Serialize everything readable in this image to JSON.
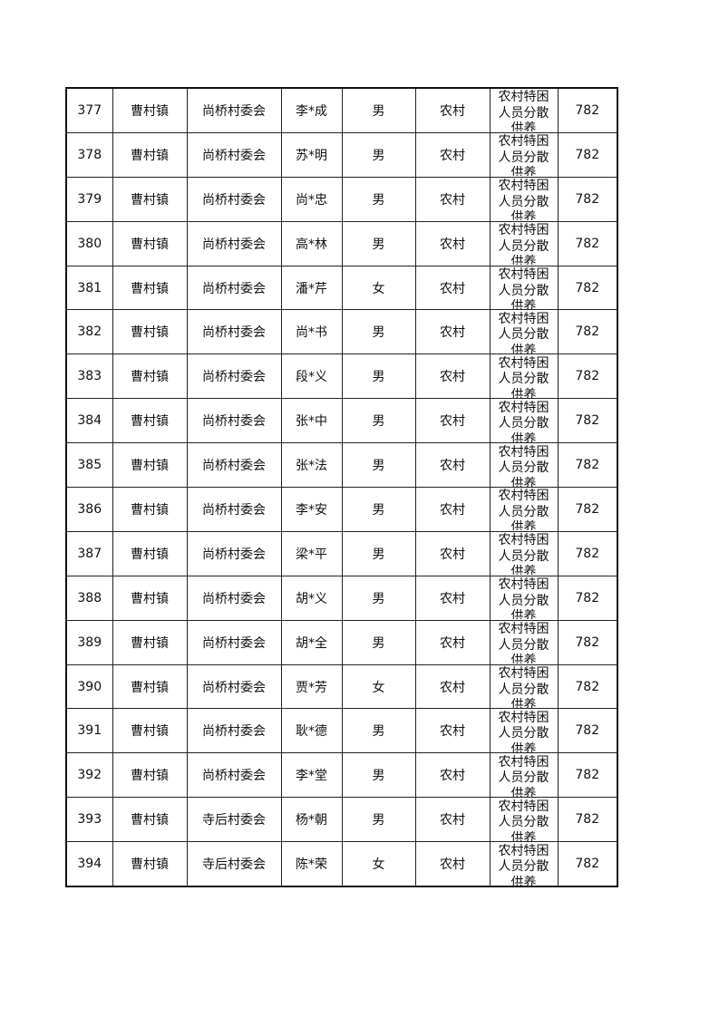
{
  "table": {
    "rows": [
      [
        "377",
        "曹村镇",
        "尚桥村委会",
        "李*成",
        "男",
        "农村",
        "农村特困人员分散供养",
        "782"
      ],
      [
        "378",
        "曹村镇",
        "尚桥村委会",
        "苏*明",
        "男",
        "农村",
        "农村特困人员分散供养",
        "782"
      ],
      [
        "379",
        "曹村镇",
        "尚桥村委会",
        "尚*忠",
        "男",
        "农村",
        "农村特困人员分散供养",
        "782"
      ],
      [
        "380",
        "曹村镇",
        "尚桥村委会",
        "高*林",
        "男",
        "农村",
        "农村特困人员分散供养",
        "782"
      ],
      [
        "381",
        "曹村镇",
        "尚桥村委会",
        "潘*芹",
        "女",
        "农村",
        "农村特困人员分散供养",
        "782"
      ],
      [
        "382",
        "曹村镇",
        "尚桥村委会",
        "尚*书",
        "男",
        "农村",
        "农村特困人员分散供养",
        "782"
      ],
      [
        "383",
        "曹村镇",
        "尚桥村委会",
        "段*义",
        "男",
        "农村",
        "农村特困人员分散供养",
        "782"
      ],
      [
        "384",
        "曹村镇",
        "尚桥村委会",
        "张*中",
        "男",
        "农村",
        "农村特困人员分散供养",
        "782"
      ],
      [
        "385",
        "曹村镇",
        "尚桥村委会",
        "张*法",
        "男",
        "农村",
        "农村特困人员分散供养",
        "782"
      ],
      [
        "386",
        "曹村镇",
        "尚桥村委会",
        "李*安",
        "男",
        "农村",
        "农村特困人员分散供养",
        "782"
      ],
      [
        "387",
        "曹村镇",
        "尚桥村委会",
        "梁*平",
        "男",
        "农村",
        "农村特困人员分散供养",
        "782"
      ],
      [
        "388",
        "曹村镇",
        "尚桥村委会",
        "胡*义",
        "男",
        "农村",
        "农村特困人员分散供养",
        "782"
      ],
      [
        "389",
        "曹村镇",
        "尚桥村委会",
        "胡*全",
        "男",
        "农村",
        "农村特困人员分散供养",
        "782"
      ],
      [
        "390",
        "曹村镇",
        "尚桥村委会",
        "贾*芳",
        "女",
        "农村",
        "农村特困人员分散供养",
        "782"
      ],
      [
        "391",
        "曹村镇",
        "尚桥村委会",
        "耿*德",
        "男",
        "农村",
        "农村特困人员分散供养",
        "782"
      ],
      [
        "392",
        "曹村镇",
        "尚桥村委会",
        "李*堂",
        "男",
        "农村",
        "农村特困人员分散供养",
        "782"
      ],
      [
        "393",
        "曹村镇",
        "寺后村委会",
        "杨*朝",
        "男",
        "农村",
        "农村特困人员分散供养",
        "782"
      ],
      [
        "394",
        "曹村镇",
        "寺后村委会",
        "陈*荣",
        "女",
        "农村",
        "农村特困人员分散供养",
        "782"
      ]
    ]
  }
}
